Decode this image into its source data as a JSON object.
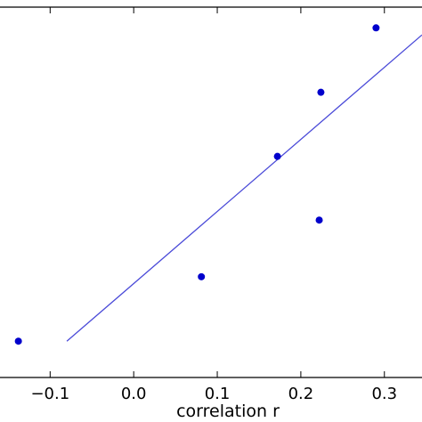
{
  "chart_data": {
    "type": "scatter",
    "title": "",
    "xlabel": "correlation r",
    "ylabel": "",
    "xlim": [
      -0.16,
      0.345
    ],
    "ylim": [
      0,
      1
    ],
    "x_ticks": [
      -0.1,
      0.0,
      0.1,
      0.2,
      0.3
    ],
    "x_tick_labels": [
      "−0.1",
      "0.0",
      "0.1",
      "0.2",
      "0.3"
    ],
    "grid": false,
    "series": [
      {
        "kind": "points",
        "color": "#0000cc",
        "points": [
          {
            "x": -0.138,
            "y": 0.098
          },
          {
            "x": 0.081,
            "y": 0.272
          },
          {
            "x": 0.172,
            "y": 0.597
          },
          {
            "x": 0.222,
            "y": 0.425
          },
          {
            "x": 0.224,
            "y": 0.77
          },
          {
            "x": 0.29,
            "y": 0.944
          }
        ]
      },
      {
        "kind": "fit-line",
        "color": "#4a4ad8",
        "points": [
          {
            "x": -0.08,
            "y": 0.098
          },
          {
            "x": 0.345,
            "y": 0.925
          }
        ]
      }
    ]
  }
}
